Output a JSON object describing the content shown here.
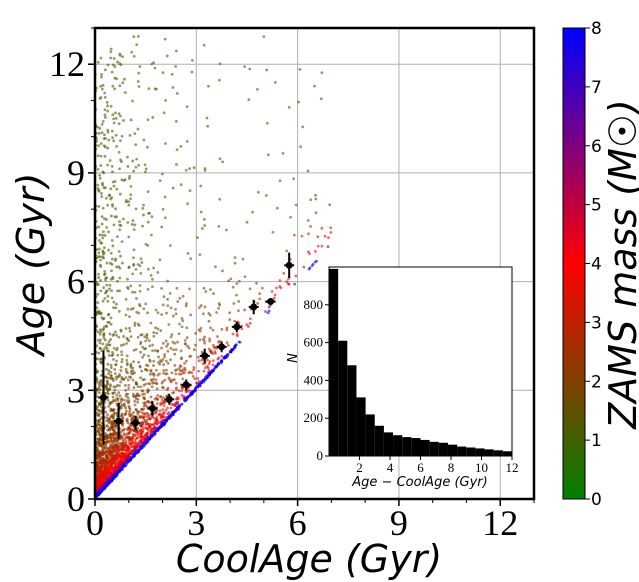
{
  "chart_data": [
    {
      "type": "scatter",
      "xlabel": "CoolAge (Gyr)",
      "ylabel": "Age (Gyr)",
      "xlim": [
        0,
        13
      ],
      "ylim": [
        0,
        13
      ],
      "xticks": [
        "0",
        "3",
        "6",
        "9",
        "12"
      ],
      "yticks": [
        "0",
        "3",
        "6",
        "9",
        "12"
      ],
      "grid": true,
      "colorbar": {
        "label": "ZAMS mass (M☉)",
        "range": [
          0,
          8
        ],
        "ticks": [
          "0",
          "1",
          "2",
          "3",
          "4",
          "5",
          "6",
          "7",
          "8"
        ],
        "colors": [
          "#008000",
          "#ff0000",
          "#0000ff"
        ]
      },
      "binned_points": [
        {
          "x": 0.25,
          "y": 2.8,
          "yerr": 1.3
        },
        {
          "x": 0.7,
          "y": 2.15,
          "yerr": 0.5
        },
        {
          "x": 1.2,
          "y": 2.1,
          "yerr": 0.2
        },
        {
          "x": 1.7,
          "y": 2.5,
          "yerr": 0.2
        },
        {
          "x": 2.2,
          "y": 2.75,
          "yerr": 0.15
        },
        {
          "x": 2.7,
          "y": 3.15,
          "yerr": 0.15
        },
        {
          "x": 3.25,
          "y": 3.95,
          "yerr": 0.2
        },
        {
          "x": 3.75,
          "y": 4.2,
          "yerr": 0.15
        },
        {
          "x": 4.2,
          "y": 4.75,
          "yerr": 0.15
        },
        {
          "x": 4.7,
          "y": 5.3,
          "yerr": 0.2
        },
        {
          "x": 5.2,
          "y": 5.45,
          "yerr": 0.05
        },
        {
          "x": 5.75,
          "y": 6.45,
          "yerr": 0.35
        }
      ]
    },
    {
      "type": "bar",
      "xlabel": "Age − CoolAge (Gyr)",
      "ylabel": "N",
      "xlim": [
        0,
        12
      ],
      "ylim": [
        0,
        1000
      ],
      "xticks": [
        "2",
        "4",
        "6",
        "8",
        "10",
        "12"
      ],
      "yticks": [
        "0",
        "200",
        "400",
        "600",
        "800"
      ],
      "bin_width": 0.6,
      "values": [
        990,
        610,
        480,
        310,
        220,
        160,
        125,
        110,
        100,
        95,
        85,
        75,
        70,
        60,
        50,
        45,
        40,
        35,
        30,
        25
      ]
    }
  ]
}
